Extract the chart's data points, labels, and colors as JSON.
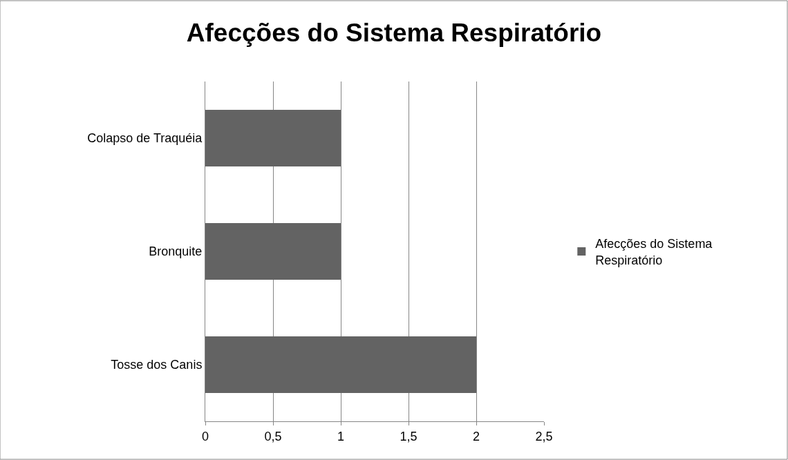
{
  "chart_data": {
    "type": "bar",
    "orientation": "horizontal",
    "title": "Afecções do Sistema Respiratório",
    "categories": [
      "Colapso de Traquéia",
      "Bronquite",
      "Tosse dos Canis"
    ],
    "series": [
      {
        "name": "Afecções do Sistema Respiratório",
        "color": "#636363",
        "values": [
          1,
          1,
          2
        ]
      }
    ],
    "xlim": [
      0,
      2.5
    ],
    "xticks": [
      0,
      {
        "value": 0.5,
        "label": "0,5"
      },
      1,
      {
        "value": 1.5,
        "label": "1,5"
      },
      2,
      {
        "value": 2.5,
        "label": "2,5"
      }
    ],
    "grid": "x",
    "legend": "right"
  }
}
